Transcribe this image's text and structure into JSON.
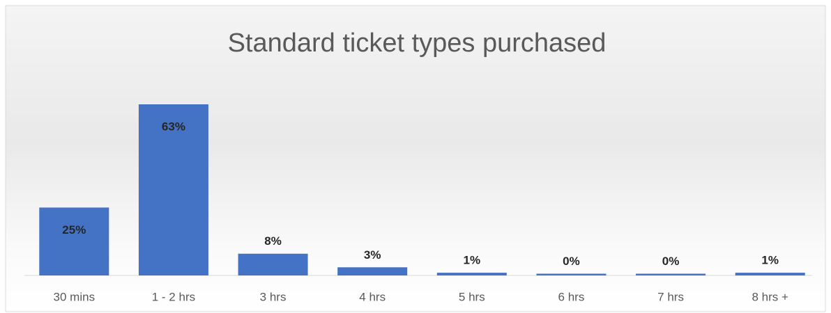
{
  "chart_data": {
    "type": "bar",
    "title": "Standard ticket types purchased",
    "categories": [
      "30 mins",
      "1 - 2 hrs",
      "3 hrs",
      "4 hrs",
      "5 hrs",
      "6 hrs",
      "7 hrs",
      "8 hrs +"
    ],
    "values": [
      25,
      63,
      8,
      3,
      1,
      0,
      0,
      1
    ],
    "value_labels": [
      "25%",
      "63%",
      "8%",
      "3%",
      "1%",
      "0%",
      "0%",
      "1%"
    ],
    "color": "#4472c4"
  }
}
